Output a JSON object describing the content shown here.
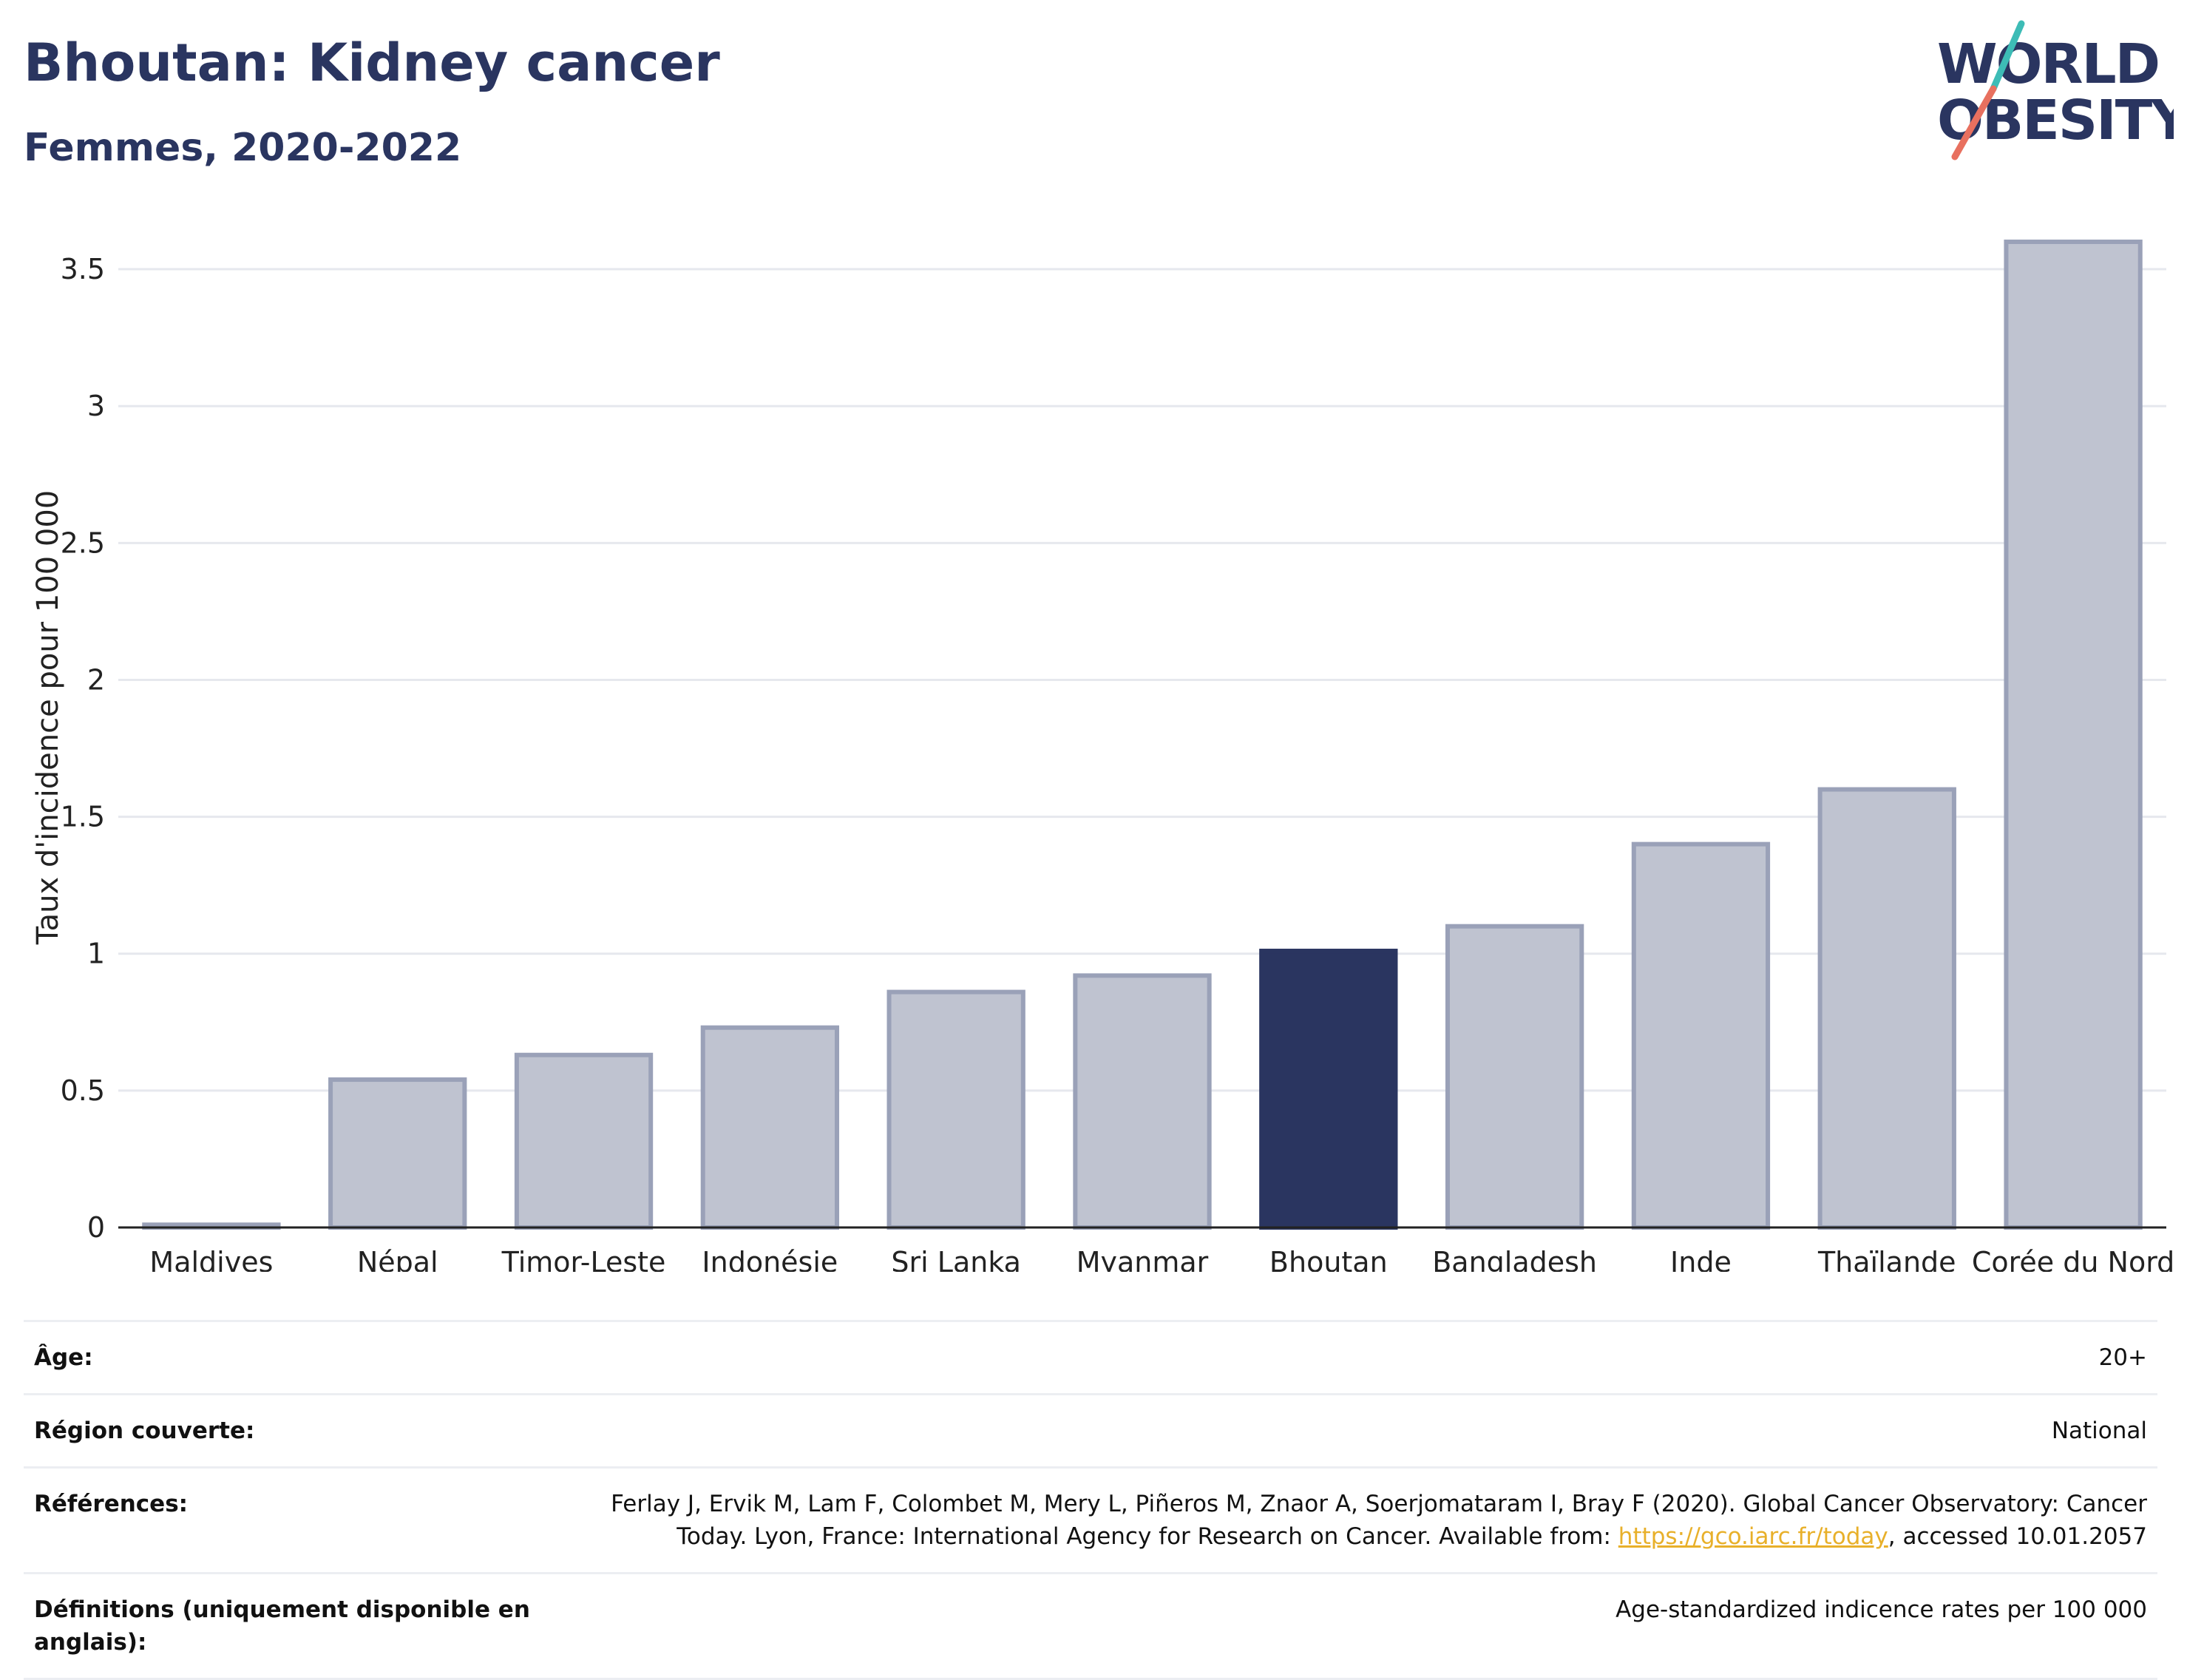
{
  "header": {
    "title": "Bhoutan: Kidney cancer",
    "subtitle": "Femmes, 2020-2022"
  },
  "logo": {
    "line1": "WORLD",
    "line2": "OBESITY"
  },
  "colors": {
    "highlight": "#2a3560",
    "bar": "#bfc3d0",
    "bar_stroke": "#9aa1b8",
    "grid": "#e6e8ee",
    "accent_teal": "#3dbcb6",
    "accent_red": "#e8705f"
  },
  "chart_data": {
    "type": "bar",
    "categories": [
      "Maldives",
      "Népal",
      "Timor-Leste",
      "Indonésie",
      "Sri Lanka",
      "Myanmar",
      "Bhoutan",
      "Bangladesh",
      "Inde",
      "Thaïlande",
      "Corée du Nord"
    ],
    "values": [
      0.01,
      0.54,
      0.63,
      0.73,
      0.86,
      0.92,
      1.01,
      1.1,
      1.4,
      1.6,
      3.6
    ],
    "highlight": "Bhoutan",
    "ylabel": "Taux d'incidence pour 100 000",
    "ylim": [
      0,
      3.7
    ],
    "yticks": [
      0,
      0.5,
      1,
      1.5,
      2,
      2.5,
      3,
      3.5
    ],
    "ytick_labels": [
      "0",
      "0.5",
      "1",
      "1.5",
      "2",
      "2.5",
      "3",
      "3.5"
    ],
    "grid": true
  },
  "meta": {
    "age_label": "Âge:",
    "age_value": "20+",
    "region_label": "Région couverte:",
    "region_value": "National",
    "refs_label": "Références:",
    "refs_text_before": "Ferlay J, Ervik M, Lam F, Colombet M, Mery L, Piñeros M, Znaor A, Soerjomataram I, Bray F (2020). Global Cancer Observatory: Cancer Today. Lyon, France: International Agency for Research on Cancer. Available from: ",
    "refs_link": "https://gco.iarc.fr/today",
    "refs_text_after": ", accessed 10.01.2057",
    "defs_label": "Définitions (uniquement disponible en anglais):",
    "defs_value": "Age-standardized indicence rates per 100 000"
  }
}
